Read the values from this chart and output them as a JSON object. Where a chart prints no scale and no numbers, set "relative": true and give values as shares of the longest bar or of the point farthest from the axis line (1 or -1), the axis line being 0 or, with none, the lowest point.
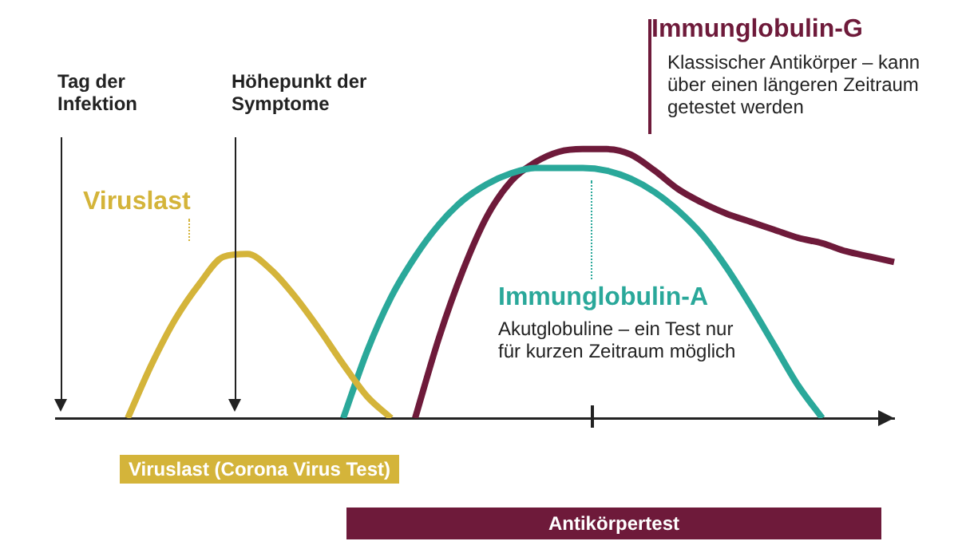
{
  "chart_data": {
    "type": "line",
    "relative": true,
    "legend": false,
    "grid": false,
    "tick_labels": false,
    "categories": [
      null,
      null,
      null,
      null,
      null,
      null,
      null,
      null,
      null,
      null,
      null,
      null,
      null,
      null,
      null,
      null,
      null,
      null,
      null,
      null,
      null,
      null,
      null,
      null,
      null,
      null,
      null,
      null,
      null,
      null,
      null,
      null,
      null,
      null,
      null,
      null
    ],
    "series": [
      {
        "name": "Viruslast",
        "color": "#d4b43a",
        "values": [
          null,
          null,
          null,
          0,
          0.2,
          0.37,
          0.5,
          0.6,
          0.61,
          0.55,
          0.45,
          0.33,
          0.2,
          0.08,
          0,
          null,
          null,
          null,
          null,
          null,
          null,
          null,
          null,
          null,
          null,
          null,
          null,
          null,
          null,
          null,
          null,
          null,
          null,
          null,
          null,
          null
        ]
      },
      {
        "name": "Immunglobulin-A",
        "color": "#2aa89a",
        "values": [
          null,
          null,
          null,
          null,
          null,
          null,
          null,
          null,
          null,
          null,
          null,
          null,
          0,
          0.25,
          0.45,
          0.6,
          0.72,
          0.81,
          0.87,
          0.91,
          0.93,
          0.93,
          0.93,
          0.92,
          0.89,
          0.84,
          0.77,
          0.68,
          0.56,
          0.42,
          0.27,
          0.12,
          0,
          null,
          null,
          null
        ]
      },
      {
        "name": "Immunglobulin-G",
        "color": "#6e1a3a",
        "values": [
          null,
          null,
          null,
          null,
          null,
          null,
          null,
          null,
          null,
          null,
          null,
          null,
          null,
          null,
          null,
          0,
          0.3,
          0.55,
          0.75,
          0.88,
          0.95,
          0.99,
          1,
          1,
          0.98,
          0.92,
          0.85,
          0.8,
          0.76,
          0.73,
          0.7,
          0.67,
          0.65,
          0.62,
          0.6,
          0.58
        ]
      }
    ],
    "annotations": [
      "Tag der Infektion",
      "Höhepunkt der Symptome",
      "Klassischer Antikörper – kann über einen längeren Zeitraum getestet werden",
      "Akutglobuline – ein Test nur für kurzen Zeitraum möglich",
      "Viruslast (Corona Virus Test)",
      "Antikörpertest"
    ]
  }
}
